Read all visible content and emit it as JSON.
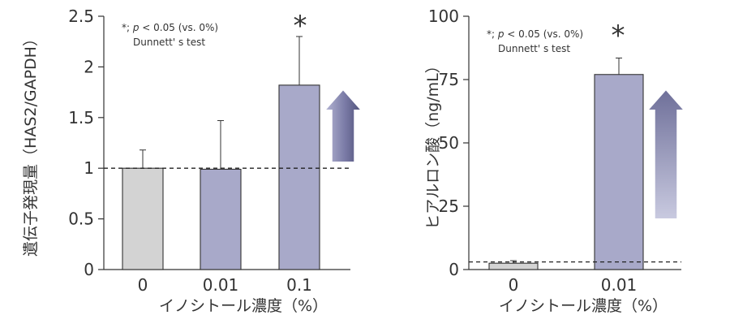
{
  "chart_data": [
    {
      "type": "bar",
      "categories": [
        "0",
        "0.01",
        "0.1"
      ],
      "values": [
        1.0,
        0.99,
        1.82
      ],
      "errors": [
        0.18,
        0.48,
        0.48
      ],
      "bar_colors": [
        "#d3d3d3",
        "#a8a9c9",
        "#a8a9c9"
      ],
      "ylim": [
        0,
        2.5
      ],
      "yticks": [
        "0",
        "0.5",
        "1",
        "1.5",
        "2",
        "2.5"
      ],
      "ytick_values": [
        0,
        0.5,
        1,
        1.5,
        2,
        2.5
      ],
      "xlabel": "イノシトール濃度（%）",
      "ylabel": "遺伝子発現量（HAS2/GAPDH）",
      "reference_line": 1.0,
      "significance": [
        {
          "category": "0.1",
          "mark": "*"
        }
      ],
      "annotation": {
        "line1_prefix": "*; ",
        "line1_p": "p",
        "line1_rest": " < 0.05 (vs. 0%)",
        "line2": "Dunnett' s test"
      },
      "arrow": "up"
    },
    {
      "type": "bar",
      "categories": [
        "0",
        "0.01"
      ],
      "values": [
        2.5,
        77
      ],
      "errors": [
        1.0,
        6.5
      ],
      "bar_colors": [
        "#d3d3d3",
        "#a8a9c9"
      ],
      "ylim": [
        0,
        100
      ],
      "yticks": [
        "0",
        "25",
        "50",
        "75",
        "100"
      ],
      "ytick_values": [
        0,
        25,
        50,
        75,
        100
      ],
      "xlabel": "イノシトール濃度（%）",
      "ylabel": "ヒアルロン酸（ng/mL）",
      "reference_line": 3.0,
      "significance": [
        {
          "category": "0.01",
          "mark": "*"
        }
      ],
      "annotation": {
        "line1_prefix": "*; ",
        "line1_p": "p",
        "line1_rest": " < 0.05 (vs. 0%)",
        "line2": "Dunnett' s test"
      },
      "arrow": "up"
    }
  ]
}
